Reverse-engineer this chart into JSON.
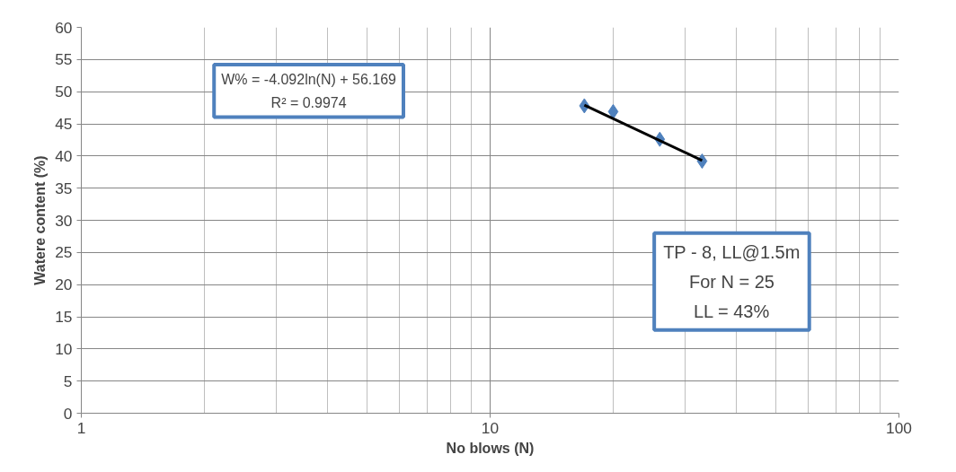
{
  "chart_data": {
    "type": "scatter",
    "xlabel": "No blows (N)",
    "ylabel": "Watere content (%)",
    "log": "x",
    "xlim": [
      1,
      100
    ],
    "xticks": [
      1,
      10,
      100
    ],
    "ylim": [
      0,
      60
    ],
    "yticks": [
      0,
      5,
      10,
      15,
      20,
      25,
      30,
      35,
      40,
      45,
      50,
      55,
      60
    ],
    "grid": true,
    "marker": "diamond",
    "series": [
      {
        "color": "#4f81bd",
        "x": [
          17,
          20,
          26,
          33
        ],
        "values": [
          47.8,
          46.9,
          42.6,
          39.2
        ]
      },
      {
        "type": "line",
        "color": "#000000",
        "x": [
          17,
          33
        ],
        "values": [
          47.9,
          39.3
        ],
        "marker": "none",
        "line_style": "solid"
      }
    ],
    "annotations": [
      "W% = -4.092ln(N) + 56.169",
      "R² = 0.9974",
      "TP - 8, LL@1.5m",
      "For N = 25",
      "LL = 43%"
    ]
  }
}
